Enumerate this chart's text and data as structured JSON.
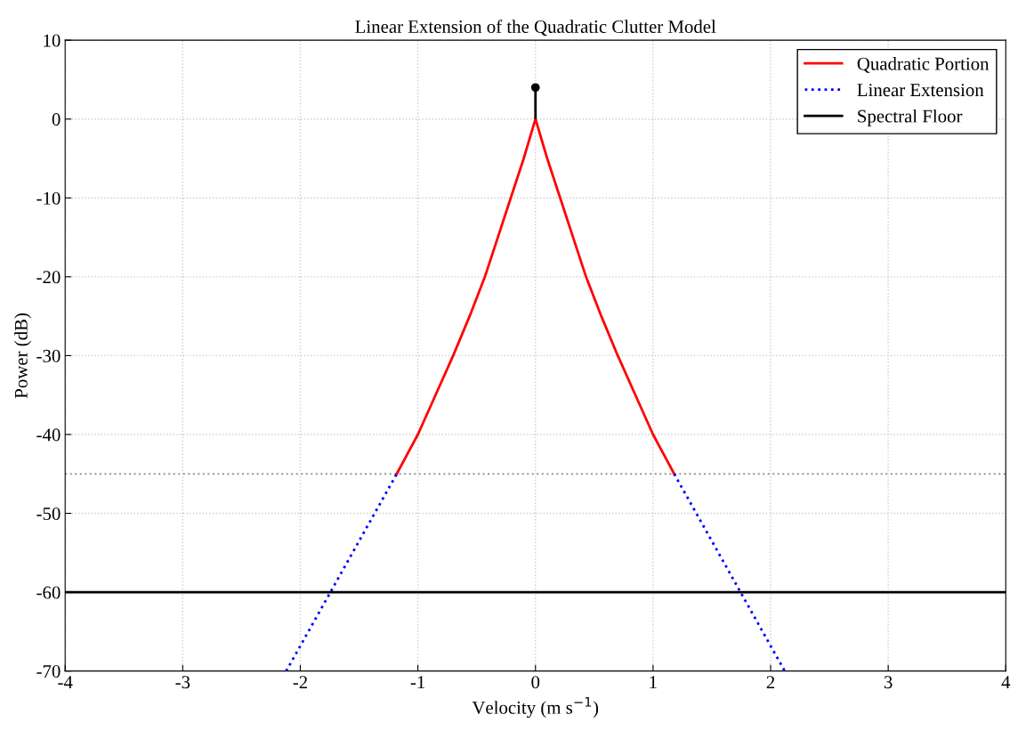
{
  "chart_data": {
    "type": "line",
    "title": "Linear Extension of the Quadratic Clutter Model",
    "xlabel": "Velocity (m s$^{−1}$)",
    "ylabel": "Power (dB)",
    "xlim": [
      -4,
      4
    ],
    "ylim": [
      -70,
      10
    ],
    "xticks": [
      -4,
      -3,
      -2,
      -1,
      0,
      1,
      2,
      3,
      4
    ],
    "yticks": [
      -70,
      -60,
      -50,
      -40,
      -30,
      -20,
      -10,
      0,
      10
    ],
    "grid": true,
    "legend": "top right",
    "series": [
      {
        "name": "Quadratic Portion",
        "color": "#ff0000",
        "line_style": "solid",
        "x": [
          -1.18,
          -1.0,
          -0.85,
          -0.7,
          -0.56,
          -0.43,
          -0.32,
          -0.21,
          -0.1,
          0,
          0.1,
          0.21,
          0.32,
          0.43,
          0.56,
          0.7,
          0.85,
          1.0,
          1.18
        ],
        "values": [
          -45,
          -40,
          -35,
          -30,
          -25,
          -20,
          -15,
          -10,
          -5,
          0,
          -5,
          -10,
          -15,
          -20,
          -25,
          -30,
          -35,
          -40,
          -45
        ]
      },
      {
        "name": "Linear Extension",
        "color": "#0000ff",
        "line_style": "dotted",
        "x": [
          -2.12,
          -1.18,
          0,
          1.18,
          2.12
        ],
        "values": [
          -70,
          -45,
          null,
          -45,
          -70
        ]
      },
      {
        "name": "Spectral Floor",
        "color": "#000000",
        "line_style": "solid",
        "x": [
          -4,
          4
        ],
        "values": [
          -60,
          -60
        ]
      },
      {
        "type": "lollipop",
        "color": "#000000",
        "marker": "circle",
        "x": [
          0
        ],
        "values": [
          4
        ]
      }
    ],
    "ref_lines": [
      {
        "axis": "y",
        "value": -45,
        "color": "#999999",
        "line_style": "dotted"
      }
    ]
  }
}
